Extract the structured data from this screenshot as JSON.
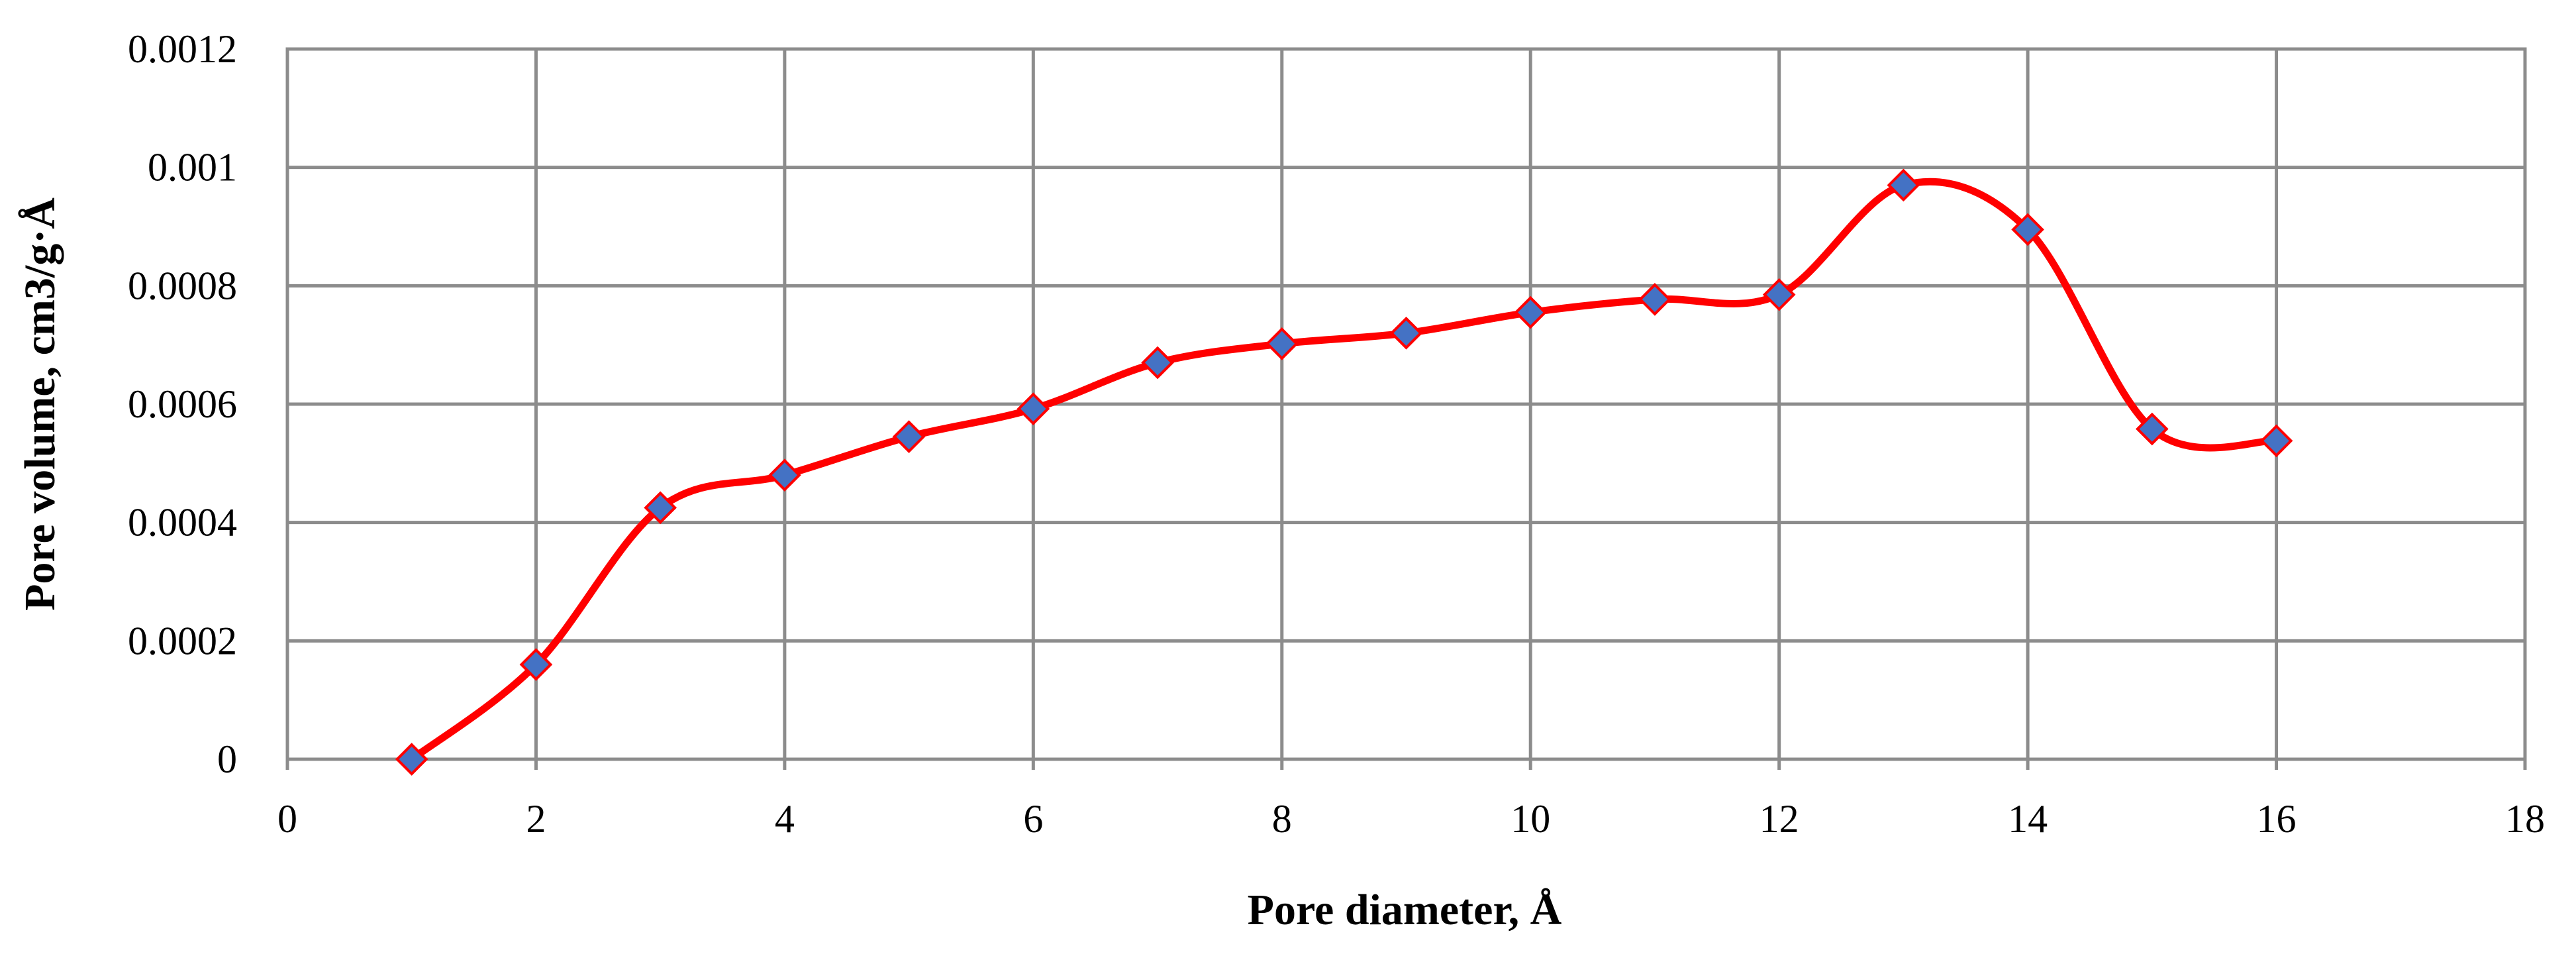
{
  "chart_data": {
    "type": "line",
    "x_label": "Pore diameter, Å",
    "y_label": "Pore volume, cm3/g·Å",
    "x": [
      1,
      2,
      3,
      4,
      5,
      6,
      7,
      8,
      9,
      10,
      11,
      12,
      13,
      14,
      15,
      16
    ],
    "series": [
      {
        "name": "Pore volume",
        "color": "#ff0000",
        "marker_color": "#4472c4",
        "values": [
          0,
          0.00016,
          0.000425,
          0.00048,
          0.000545,
          0.000592,
          0.00067,
          0.000702,
          0.00072,
          0.000755,
          0.000777,
          0.000785,
          0.00097,
          0.000895,
          0.000558,
          0.000538
        ]
      }
    ],
    "xlim": [
      0,
      18
    ],
    "xticks": [
      0,
      2,
      4,
      6,
      8,
      10,
      12,
      14,
      16,
      18
    ],
    "ylim": [
      0,
      0.0012
    ],
    "yticks": [
      0,
      0.0002,
      0.0004,
      0.0006,
      0.0008,
      0.001,
      0.0012
    ],
    "grid": true,
    "smooth": true
  }
}
